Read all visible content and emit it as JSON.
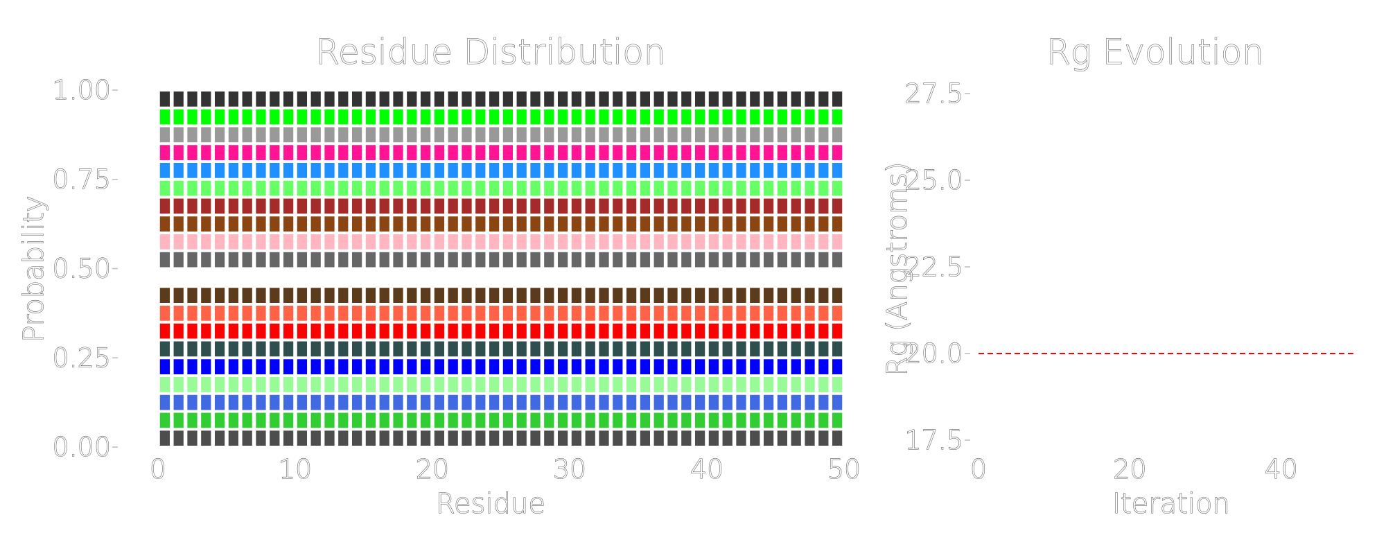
{
  "chart_data": [
    {
      "type": "bar",
      "stacked": true,
      "title": "Residue Distribution",
      "xlabel": "Residue",
      "ylabel": "Probability",
      "xlim": [
        0,
        50
      ],
      "ylim": [
        0,
        1
      ],
      "x_ticks": [
        "0",
        "10",
        "20",
        "30",
        "40",
        "50"
      ],
      "y_ticks": [
        "0.00",
        "0.25",
        "0.50",
        "0.75",
        "1.00"
      ],
      "residues": 50,
      "grid": false,
      "series": [
        {
          "color": "#4d4d4d",
          "values": 0.05
        },
        {
          "color": "#32cd32",
          "values": 0.05
        },
        {
          "color": "#4169e1",
          "values": 0.05
        },
        {
          "color": "#98fb98",
          "values": 0.05
        },
        {
          "color": "#0000ff",
          "values": 0.05
        },
        {
          "color": "#2f4f4f",
          "values": 0.05
        },
        {
          "color": "#ff0000",
          "values": 0.05
        },
        {
          "color": "#ff6347",
          "values": 0.05
        },
        {
          "color": "#5c3b1c",
          "values": 0.05
        },
        {
          "color": "#ffffff",
          "values": 0.05
        },
        {
          "color": "#666666",
          "values": 0.05
        },
        {
          "color": "#ffb6c1",
          "values": 0.05
        },
        {
          "color": "#8b4513",
          "values": 0.05
        },
        {
          "color": "#a52a2a",
          "values": 0.05
        },
        {
          "color": "#66ff66",
          "values": 0.05
        },
        {
          "color": "#1e90ff",
          "values": 0.05
        },
        {
          "color": "#ff1493",
          "values": 0.05
        },
        {
          "color": "#999999",
          "values": 0.05
        },
        {
          "color": "#00ff00",
          "values": 0.05
        },
        {
          "color": "#333333",
          "values": 0.05
        }
      ]
    },
    {
      "type": "line",
      "title": "Rg Evolution",
      "xlabel": "Iteration",
      "ylabel": "Rg (Angstroms)",
      "xlim": [
        0,
        50
      ],
      "ylim": [
        17,
        28
      ],
      "x_ticks": [
        "0",
        "20",
        "40"
      ],
      "y_ticks": [
        "17.5",
        "20.0",
        "22.5",
        "25.0",
        "27.5"
      ],
      "grid": false,
      "series": [],
      "reference_line": {
        "y": 20.0,
        "color": "#ff0000",
        "style": "dashed"
      }
    }
  ]
}
